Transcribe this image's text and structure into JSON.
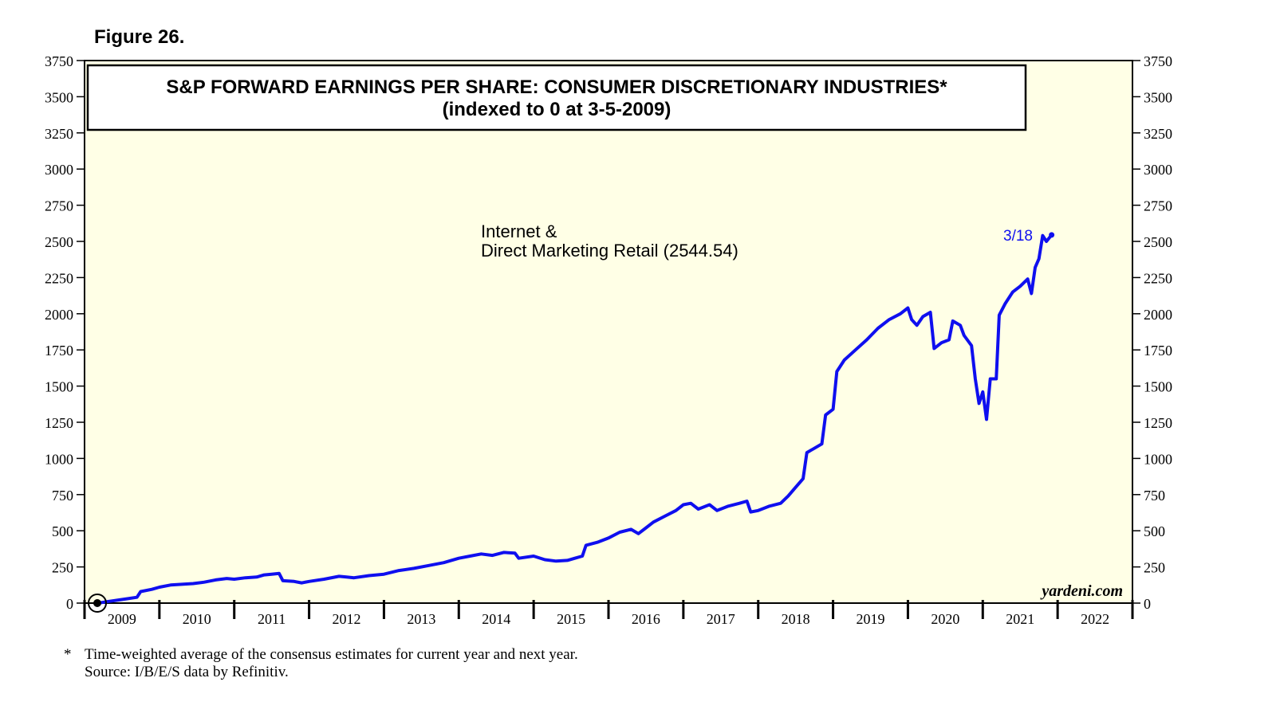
{
  "figure_label": "Figure 26.",
  "footnote": {
    "marker": "*",
    "text": "Time-weighted average of the consensus estimates for current year and next year.",
    "source": "Source: I/B/E/S data by Refinitiv."
  },
  "colors": {
    "plot_background": "#ffffe6",
    "series_line": "#0f0fef",
    "frame": "#000000"
  },
  "chart_data": {
    "type": "line",
    "title": "S&P FORWARD EARNINGS PER SHARE: CONSUMER DISCRETIONARY INDUSTRIES*",
    "subtitle": "(indexed to 0 at 3-5-2009)",
    "xlabel": "",
    "ylabel": "",
    "xlim": [
      2009.0,
      2023.0
    ],
    "ylim": [
      0,
      3750
    ],
    "yticks": [
      0,
      250,
      500,
      750,
      1000,
      1250,
      1500,
      1750,
      2000,
      2250,
      2500,
      2750,
      3000,
      3250,
      3500,
      3750
    ],
    "ytick_labels": [
      "0",
      "250",
      "500",
      "750",
      "1000",
      "1250",
      "1500",
      "1750",
      "2000",
      "2250",
      "2500",
      "2750",
      "3000",
      "3250",
      "3500",
      "3750"
    ],
    "xtick_labels": [
      "2009",
      "2010",
      "2011",
      "2012",
      "2013",
      "2014",
      "2015",
      "2016",
      "2017",
      "2018",
      "2019",
      "2020",
      "2021",
      "2022"
    ],
    "watermark": "yardeni.com",
    "series": [
      {
        "name": "Internet & Direct Marketing Retail",
        "label_line1": "Internet &",
        "label_line2": "Direct Marketing Retail (2544.54)",
        "end_label": "3/18",
        "last_value": 2544.54,
        "points": [
          [
            2009.18,
            0
          ],
          [
            2009.3,
            10
          ],
          [
            2009.5,
            25
          ],
          [
            2009.7,
            40
          ],
          [
            2009.75,
            80
          ],
          [
            2009.9,
            95
          ],
          [
            2010.0,
            110
          ],
          [
            2010.15,
            125
          ],
          [
            2010.3,
            130
          ],
          [
            2010.45,
            135
          ],
          [
            2010.6,
            145
          ],
          [
            2010.75,
            160
          ],
          [
            2010.9,
            170
          ],
          [
            2011.0,
            165
          ],
          [
            2011.15,
            175
          ],
          [
            2011.3,
            180
          ],
          [
            2011.4,
            195
          ],
          [
            2011.5,
            200
          ],
          [
            2011.6,
            205
          ],
          [
            2011.65,
            155
          ],
          [
            2011.8,
            150
          ],
          [
            2011.9,
            140
          ],
          [
            2012.0,
            150
          ],
          [
            2012.2,
            165
          ],
          [
            2012.4,
            185
          ],
          [
            2012.5,
            180
          ],
          [
            2012.6,
            175
          ],
          [
            2012.8,
            190
          ],
          [
            2013.0,
            200
          ],
          [
            2013.2,
            225
          ],
          [
            2013.4,
            240
          ],
          [
            2013.6,
            260
          ],
          [
            2013.8,
            280
          ],
          [
            2014.0,
            310
          ],
          [
            2014.15,
            325
          ],
          [
            2014.3,
            340
          ],
          [
            2014.45,
            330
          ],
          [
            2014.6,
            350
          ],
          [
            2014.75,
            345
          ],
          [
            2014.8,
            310
          ],
          [
            2015.0,
            325
          ],
          [
            2015.15,
            300
          ],
          [
            2015.3,
            290
          ],
          [
            2015.45,
            295
          ],
          [
            2015.55,
            310
          ],
          [
            2015.65,
            325
          ],
          [
            2015.7,
            400
          ],
          [
            2015.85,
            420
          ],
          [
            2016.0,
            450
          ],
          [
            2016.15,
            490
          ],
          [
            2016.3,
            510
          ],
          [
            2016.4,
            480
          ],
          [
            2016.5,
            520
          ],
          [
            2016.6,
            560
          ],
          [
            2016.75,
            600
          ],
          [
            2016.9,
            640
          ],
          [
            2017.0,
            680
          ],
          [
            2017.1,
            690
          ],
          [
            2017.2,
            650
          ],
          [
            2017.35,
            680
          ],
          [
            2017.45,
            640
          ],
          [
            2017.6,
            670
          ],
          [
            2017.75,
            690
          ],
          [
            2017.85,
            705
          ],
          [
            2017.9,
            630
          ],
          [
            2018.0,
            640
          ],
          [
            2018.15,
            670
          ],
          [
            2018.3,
            690
          ],
          [
            2018.4,
            740
          ],
          [
            2018.5,
            800
          ],
          [
            2018.6,
            860
          ],
          [
            2018.65,
            1040
          ],
          [
            2018.75,
            1070
          ],
          [
            2018.85,
            1100
          ],
          [
            2018.9,
            1300
          ],
          [
            2019.0,
            1340
          ],
          [
            2019.05,
            1600
          ],
          [
            2019.15,
            1680
          ],
          [
            2019.3,
            1750
          ],
          [
            2019.45,
            1820
          ],
          [
            2019.6,
            1900
          ],
          [
            2019.75,
            1960
          ],
          [
            2019.9,
            2000
          ],
          [
            2020.0,
            2040
          ],
          [
            2020.05,
            1960
          ],
          [
            2020.12,
            1920
          ],
          [
            2020.2,
            1980
          ],
          [
            2020.3,
            2010
          ],
          [
            2020.35,
            1760
          ],
          [
            2020.45,
            1800
          ],
          [
            2020.55,
            1820
          ],
          [
            2020.6,
            1950
          ],
          [
            2020.7,
            1920
          ],
          [
            2020.75,
            1850
          ],
          [
            2020.85,
            1780
          ],
          [
            2020.9,
            1550
          ],
          [
            2020.95,
            1380
          ],
          [
            2021.0,
            1460
          ],
          [
            2021.05,
            1270
          ],
          [
            2021.1,
            1550
          ],
          [
            2021.18,
            1550
          ],
          [
            2021.22,
            1990
          ],
          [
            2021.3,
            2070
          ],
          [
            2021.4,
            2150
          ],
          [
            2021.5,
            2190
          ],
          [
            2021.6,
            2240
          ],
          [
            2021.65,
            2140
          ],
          [
            2021.7,
            2320
          ],
          [
            2021.75,
            2380
          ],
          [
            2021.8,
            2540
          ],
          [
            2021.85,
            2500
          ],
          [
            2021.92,
            2544.54
          ]
        ]
      }
    ]
  }
}
